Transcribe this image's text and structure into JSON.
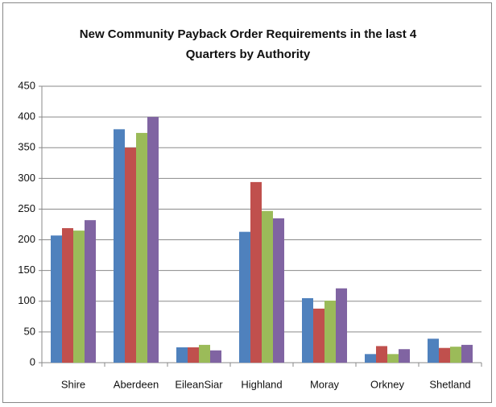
{
  "chart_data": {
    "type": "bar",
    "title": "New Community Payback Order Requirements in the last 4 Quarters by Authority",
    "categories": [
      "Shire",
      "Aberdeen",
      "EileanSiar",
      "Highland",
      "Moray",
      "Orkney",
      "Shetland"
    ],
    "series": [
      {
        "color": "#4f81bd",
        "values": [
          207,
          380,
          25,
          213,
          105,
          14,
          39
        ]
      },
      {
        "color": "#c0504d",
        "values": [
          219,
          350,
          25,
          294,
          88,
          27,
          24
        ]
      },
      {
        "color": "#9bbb59",
        "values": [
          215,
          374,
          29,
          247,
          101,
          14,
          26
        ]
      },
      {
        "color": "#8064a2",
        "values": [
          232,
          400,
          20,
          235,
          121,
          22,
          29
        ]
      }
    ],
    "ylim": [
      0,
      450
    ],
    "yticks": [
      0,
      50,
      100,
      150,
      200,
      250,
      300,
      350,
      400,
      450
    ],
    "grid": true
  }
}
